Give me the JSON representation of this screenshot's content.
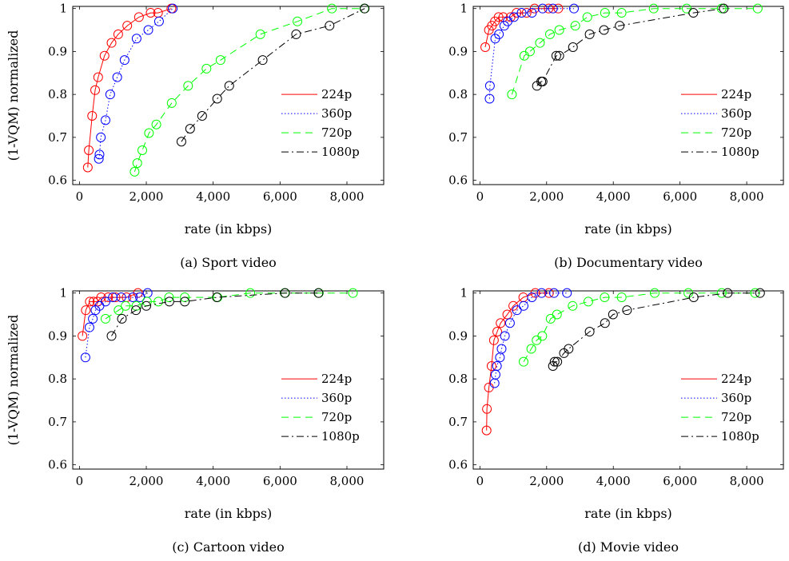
{
  "legend_entries": [
    "224p",
    "360p",
    "720p",
    "1080p"
  ],
  "series_colors": {
    "224p": "#ff0000",
    "360p": "#0000ff",
    "720p": "#00ff00",
    "1080p": "#000000"
  },
  "chart_data": [
    {
      "type": "line",
      "caption": "(a) Sport video",
      "xlabel": "rate (in kbps)",
      "ylabel": "(1-VQM) normalized",
      "xlim": [
        -200,
        9100
      ],
      "ylim": [
        0.59,
        1.005
      ],
      "xticks": [
        0,
        2000,
        4000,
        6000,
        8000
      ],
      "xticklabels": [
        "0",
        "2,000",
        "4,000",
        "6,000",
        "8,000"
      ],
      "yticks": [
        0.6,
        0.7,
        0.8,
        0.9,
        1
      ],
      "yticklabels": [
        "0.6",
        "0.7",
        "0.8",
        "0.9",
        "1"
      ],
      "grid": false,
      "legend": "center-right",
      "series": [
        {
          "name": "224p",
          "points": [
            [
              250,
              0.63
            ],
            [
              280,
              0.67
            ],
            [
              380,
              0.75
            ],
            [
              470,
              0.81
            ],
            [
              560,
              0.84
            ],
            [
              750,
              0.89
            ],
            [
              960,
              0.92
            ],
            [
              1160,
              0.94
            ],
            [
              1430,
              0.96
            ],
            [
              1780,
              0.98
            ],
            [
              2130,
              0.99
            ],
            [
              2350,
              0.99
            ],
            [
              2750,
              1.0
            ]
          ]
        },
        {
          "name": "360p",
          "points": [
            [
              580,
              0.65
            ],
            [
              600,
              0.66
            ],
            [
              640,
              0.7
            ],
            [
              780,
              0.74
            ],
            [
              920,
              0.8
            ],
            [
              1130,
              0.84
            ],
            [
              1350,
              0.88
            ],
            [
              1710,
              0.93
            ],
            [
              2060,
              0.95
            ],
            [
              2380,
              0.97
            ],
            [
              2790,
              1.0
            ]
          ]
        },
        {
          "name": "720p",
          "points": [
            [
              1650,
              0.62
            ],
            [
              1730,
              0.64
            ],
            [
              1880,
              0.67
            ],
            [
              2080,
              0.71
            ],
            [
              2300,
              0.73
            ],
            [
              2760,
              0.78
            ],
            [
              3250,
              0.82
            ],
            [
              3800,
              0.86
            ],
            [
              4220,
              0.88
            ],
            [
              5410,
              0.94
            ],
            [
              6520,
              0.97
            ],
            [
              7550,
              1.0
            ],
            [
              8520,
              1.0
            ]
          ]
        },
        {
          "name": "1080p",
          "points": [
            [
              3050,
              0.69
            ],
            [
              3310,
              0.72
            ],
            [
              3670,
              0.75
            ],
            [
              4120,
              0.79
            ],
            [
              4480,
              0.82
            ],
            [
              5480,
              0.88
            ],
            [
              6480,
              0.94
            ],
            [
              7480,
              0.96
            ],
            [
              8530,
              1.0
            ]
          ]
        }
      ]
    },
    {
      "type": "line",
      "caption": "(b) Documentary video",
      "xlabel": "rate (in kbps)",
      "ylabel": "",
      "xlim": [
        -200,
        9100
      ],
      "ylim": [
        0.59,
        1.005
      ],
      "xticks": [
        0,
        2000,
        4000,
        6000,
        8000
      ],
      "xticklabels": [
        "0",
        "2,000",
        "4,000",
        "6,000",
        "8,000"
      ],
      "yticks": [
        0.6,
        0.7,
        0.8,
        0.9,
        1
      ],
      "yticklabels": [
        "0.6",
        "0.7",
        "0.8",
        "0.9",
        "1"
      ],
      "grid": false,
      "legend": "center-right",
      "series": [
        {
          "name": "224p",
          "points": [
            [
              160,
              0.91
            ],
            [
              270,
              0.95
            ],
            [
              360,
              0.96
            ],
            [
              450,
              0.97
            ],
            [
              560,
              0.98
            ],
            [
              700,
              0.98
            ],
            [
              920,
              0.98
            ],
            [
              1100,
              0.99
            ],
            [
              1400,
              0.99
            ],
            [
              1640,
              1.0
            ],
            [
              2060,
              1.0
            ],
            [
              2350,
              1.0
            ]
          ]
        },
        {
          "name": "360p",
          "points": [
            [
              290,
              0.79
            ],
            [
              300,
              0.82
            ],
            [
              460,
              0.93
            ],
            [
              570,
              0.94
            ],
            [
              730,
              0.96
            ],
            [
              830,
              0.97
            ],
            [
              1020,
              0.98
            ],
            [
              1250,
              0.99
            ],
            [
              1560,
              0.99
            ],
            [
              1880,
              1.0
            ],
            [
              2190,
              1.0
            ],
            [
              2820,
              1.0
            ]
          ]
        },
        {
          "name": "720p",
          "points": [
            [
              960,
              0.8
            ],
            [
              1330,
              0.89
            ],
            [
              1500,
              0.9
            ],
            [
              1800,
              0.92
            ],
            [
              2100,
              0.94
            ],
            [
              2380,
              0.95
            ],
            [
              2860,
              0.96
            ],
            [
              3220,
              0.98
            ],
            [
              3750,
              0.99
            ],
            [
              4250,
              0.99
            ],
            [
              5210,
              1.0
            ],
            [
              6200,
              1.0
            ],
            [
              7250,
              1.0
            ],
            [
              8330,
              1.0
            ]
          ]
        },
        {
          "name": "1080p",
          "points": [
            [
              1710,
              0.82
            ],
            [
              1840,
              0.83
            ],
            [
              1880,
              0.83
            ],
            [
              2290,
              0.89
            ],
            [
              2380,
              0.89
            ],
            [
              2790,
              0.91
            ],
            [
              3290,
              0.94
            ],
            [
              3720,
              0.95
            ],
            [
              4190,
              0.96
            ],
            [
              6400,
              0.99
            ],
            [
              7310,
              1.0
            ]
          ]
        }
      ]
    },
    {
      "type": "line",
      "caption": "(c) Cartoon video",
      "xlabel": "rate (in kbps)",
      "ylabel": "(1-VQM) normalized",
      "xlim": [
        -200,
        9100
      ],
      "ylim": [
        0.59,
        1.005
      ],
      "xticks": [
        0,
        2000,
        4000,
        6000,
        8000
      ],
      "xticklabels": [
        "0",
        "2,000",
        "4,000",
        "6,000",
        "8,000"
      ],
      "yticks": [
        0.6,
        0.7,
        0.8,
        0.9,
        1
      ],
      "yticklabels": [
        "0.6",
        "0.7",
        "0.8",
        "0.9",
        "1"
      ],
      "grid": false,
      "legend": "center-right",
      "series": [
        {
          "name": "224p",
          "points": [
            [
              90,
              0.9
            ],
            [
              190,
              0.96
            ],
            [
              310,
              0.98
            ],
            [
              420,
              0.98
            ],
            [
              540,
              0.98
            ],
            [
              650,
              0.99
            ],
            [
              860,
              0.99
            ],
            [
              1080,
              0.99
            ],
            [
              1410,
              0.99
            ],
            [
              1750,
              1.0
            ]
          ]
        },
        {
          "name": "360p",
          "points": [
            [
              180,
              0.85
            ],
            [
              300,
              0.92
            ],
            [
              400,
              0.94
            ],
            [
              480,
              0.96
            ],
            [
              600,
              0.97
            ],
            [
              780,
              0.98
            ],
            [
              1000,
              0.99
            ],
            [
              1250,
              0.99
            ],
            [
              1600,
              0.99
            ],
            [
              1810,
              0.99
            ],
            [
              2040,
              1.0
            ]
          ]
        },
        {
          "name": "720p",
          "points": [
            [
              780,
              0.94
            ],
            [
              1170,
              0.96
            ],
            [
              1380,
              0.97
            ],
            [
              1700,
              0.97
            ],
            [
              2020,
              0.98
            ],
            [
              2360,
              0.98
            ],
            [
              2680,
              0.99
            ],
            [
              3150,
              0.99
            ],
            [
              4130,
              0.99
            ],
            [
              5110,
              1.0
            ],
            [
              6140,
              1.0
            ],
            [
              7160,
              1.0
            ],
            [
              8180,
              1.0
            ]
          ]
        },
        {
          "name": "1080p",
          "points": [
            [
              960,
              0.9
            ],
            [
              1270,
              0.94
            ],
            [
              1690,
              0.96
            ],
            [
              2000,
              0.97
            ],
            [
              2690,
              0.98
            ],
            [
              3150,
              0.98
            ],
            [
              4110,
              0.99
            ],
            [
              6150,
              1.0
            ],
            [
              7150,
              1.0
            ]
          ]
        }
      ]
    },
    {
      "type": "line",
      "caption": "(d) Movie video",
      "xlabel": "rate (in kbps)",
      "ylabel": "",
      "xlim": [
        -200,
        9100
      ],
      "ylim": [
        0.59,
        1.005
      ],
      "xticks": [
        0,
        2000,
        4000,
        6000,
        8000
      ],
      "xticklabels": [
        "0",
        "2,000",
        "4,000",
        "6,000",
        "8,000"
      ],
      "yticks": [
        0.6,
        0.7,
        0.8,
        0.9,
        1
      ],
      "yticklabels": [
        "0.6",
        "0.7",
        "0.8",
        "0.9",
        "1"
      ],
      "grid": false,
      "legend": "center-right",
      "series": [
        {
          "name": "224p",
          "points": [
            [
              200,
              0.68
            ],
            [
              210,
              0.73
            ],
            [
              270,
              0.78
            ],
            [
              350,
              0.83
            ],
            [
              420,
              0.89
            ],
            [
              520,
              0.91
            ],
            [
              620,
              0.93
            ],
            [
              820,
              0.95
            ],
            [
              1000,
              0.97
            ],
            [
              1300,
              0.99
            ],
            [
              1660,
              1.0
            ],
            [
              2070,
              1.0
            ]
          ]
        },
        {
          "name": "360p",
          "points": [
            [
              440,
              0.79
            ],
            [
              470,
              0.81
            ],
            [
              510,
              0.83
            ],
            [
              600,
              0.85
            ],
            [
              650,
              0.87
            ],
            [
              750,
              0.9
            ],
            [
              900,
              0.93
            ],
            [
              1110,
              0.96
            ],
            [
              1310,
              0.97
            ],
            [
              1560,
              0.99
            ],
            [
              1850,
              1.0
            ],
            [
              2220,
              1.0
            ],
            [
              2610,
              1.0
            ]
          ]
        },
        {
          "name": "720p",
          "points": [
            [
              1310,
              0.84
            ],
            [
              1540,
              0.87
            ],
            [
              1700,
              0.89
            ],
            [
              1870,
              0.9
            ],
            [
              2120,
              0.94
            ],
            [
              2310,
              0.95
            ],
            [
              2780,
              0.97
            ],
            [
              3250,
              0.98
            ],
            [
              3740,
              0.99
            ],
            [
              4250,
              0.99
            ],
            [
              5240,
              1.0
            ],
            [
              6250,
              1.0
            ],
            [
              7250,
              1.0
            ],
            [
              8250,
              1.0
            ]
          ]
        },
        {
          "name": "1080p",
          "points": [
            [
              2190,
              0.83
            ],
            [
              2240,
              0.84
            ],
            [
              2320,
              0.84
            ],
            [
              2520,
              0.86
            ],
            [
              2660,
              0.87
            ],
            [
              3290,
              0.91
            ],
            [
              3750,
              0.93
            ],
            [
              3990,
              0.95
            ],
            [
              4410,
              0.96
            ],
            [
              6410,
              0.99
            ],
            [
              7430,
              1.0
            ],
            [
              8400,
              1.0
            ]
          ]
        }
      ]
    }
  ]
}
